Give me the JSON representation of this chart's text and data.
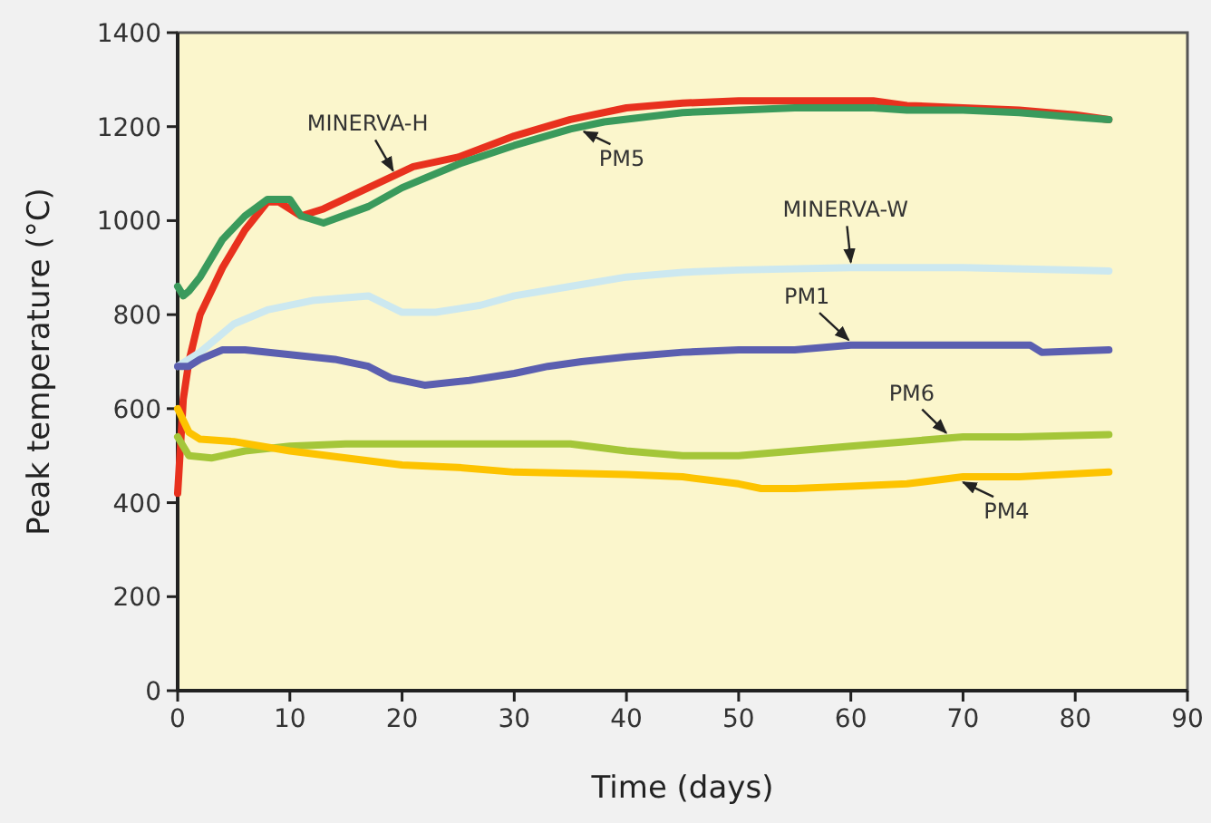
{
  "chart_data": {
    "type": "line",
    "xlabel": "Time (days)",
    "ylabel": "Peak temperature (°C)",
    "xlim": [
      0,
      90
    ],
    "xticks": [
      0,
      10,
      20,
      30,
      40,
      50,
      60,
      70,
      80,
      90
    ],
    "ylim": [
      0,
      1400
    ],
    "yticks": [
      0,
      200,
      400,
      600,
      800,
      1000,
      1200,
      1400
    ],
    "grid": false,
    "marker": "none",
    "line_style": "solid",
    "series": [
      {
        "name": "MINERVA-H",
        "color": "#e8311e",
        "x": [
          0,
          0.5,
          1,
          2,
          4,
          6,
          8,
          9,
          11,
          13,
          17,
          21,
          25,
          30,
          35,
          40,
          45,
          50,
          60,
          62,
          65,
          70,
          75,
          80,
          83
        ],
        "values": [
          420,
          620,
          700,
          800,
          900,
          980,
          1040,
          1040,
          1010,
          1025,
          1070,
          1115,
          1135,
          1180,
          1215,
          1240,
          1250,
          1255,
          1255,
          1255,
          1245,
          1240,
          1235,
          1225,
          1215
        ]
      },
      {
        "name": "PM5",
        "color": "#3a9a5c",
        "x": [
          0,
          0.5,
          1,
          2,
          4,
          6,
          8,
          10,
          11,
          13,
          17,
          20,
          25,
          30,
          35,
          38,
          45,
          55,
          62,
          65,
          70,
          75,
          80,
          83
        ],
        "values": [
          860,
          840,
          850,
          880,
          960,
          1010,
          1045,
          1045,
          1010,
          995,
          1030,
          1070,
          1120,
          1160,
          1195,
          1210,
          1230,
          1240,
          1240,
          1235,
          1235,
          1230,
          1220,
          1215
        ]
      },
      {
        "name": "MINERVA-W",
        "color": "#cce8f0",
        "x": [
          0,
          2,
          5,
          8,
          12,
          17,
          20,
          23,
          27,
          30,
          35,
          40,
          45,
          50,
          60,
          70,
          80,
          83
        ],
        "values": [
          690,
          720,
          780,
          810,
          830,
          840,
          805,
          805,
          820,
          840,
          860,
          880,
          890,
          895,
          900,
          900,
          895,
          893
        ]
      },
      {
        "name": "PM1",
        "color": "#5b5fb0",
        "x": [
          0,
          1,
          2,
          4,
          6,
          10,
          14,
          17,
          19,
          22,
          26,
          30,
          33,
          36,
          40,
          45,
          50,
          55,
          60,
          70,
          76,
          77,
          83
        ],
        "values": [
          690,
          690,
          705,
          725,
          725,
          715,
          705,
          690,
          665,
          650,
          660,
          675,
          690,
          700,
          710,
          720,
          725,
          725,
          735,
          735,
          735,
          720,
          725
        ]
      },
      {
        "name": "PM6",
        "color": "#a4c639",
        "x": [
          0,
          1,
          3,
          6,
          10,
          15,
          20,
          35,
          40,
          45,
          50,
          55,
          60,
          65,
          70,
          75,
          83
        ],
        "values": [
          540,
          500,
          495,
          510,
          520,
          525,
          525,
          525,
          510,
          500,
          500,
          510,
          520,
          530,
          540,
          540,
          545
        ]
      },
      {
        "name": "PM4",
        "color": "#fdc300",
        "x": [
          0,
          1,
          2,
          5,
          10,
          15,
          20,
          25,
          30,
          40,
          45,
          50,
          52,
          55,
          60,
          65,
          70,
          75,
          83
        ],
        "values": [
          600,
          550,
          535,
          530,
          510,
          495,
          480,
          475,
          465,
          460,
          455,
          440,
          430,
          430,
          435,
          440,
          455,
          455,
          465
        ]
      }
    ]
  }
}
